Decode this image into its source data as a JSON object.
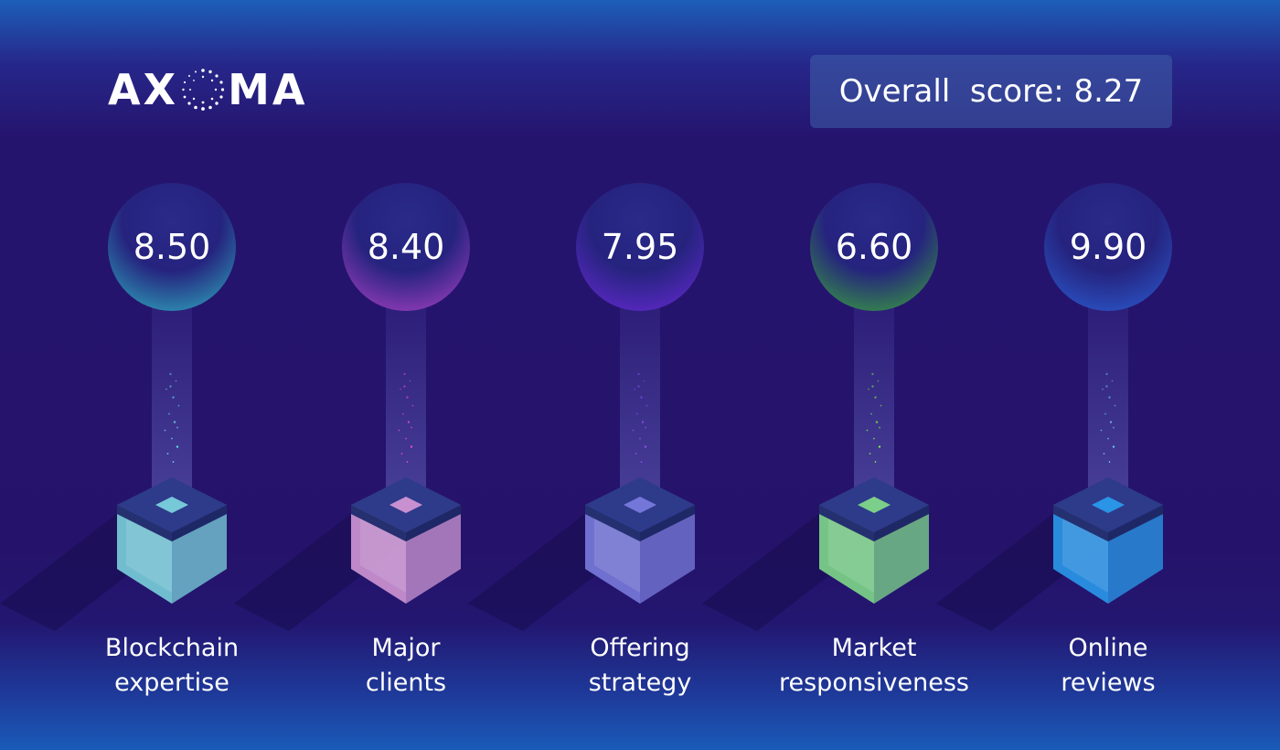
{
  "header": {
    "logo_text_left": "AX",
    "logo_text_right": "MA",
    "overall_score_label": "Overall  score: 8.27"
  },
  "colors": {
    "background": "#25136b",
    "blockchain": "#2fb3c2",
    "clients": "#b042c8",
    "offering": "#6a2ad8",
    "market": "#3aa83a",
    "reviews": "#2b5fd6"
  },
  "pillars": [
    {
      "id": "blockchain-expertise",
      "score": "8.50",
      "line1": "Blockchain",
      "line2": "expertise",
      "color": "#2fb3c2",
      "cube": "#7fd8e0",
      "dots": "#6fe8f0"
    },
    {
      "id": "major-clients",
      "score": "8.40",
      "line1": "Major",
      "line2": "clients",
      "color": "#b042c8",
      "cube": "#d99ad8",
      "dots": "#ff4ad8"
    },
    {
      "id": "offering-strategy",
      "score": "7.95",
      "line1": "Offering",
      "line2": "strategy",
      "color": "#6a2ad8",
      "cube": "#7d7ee0",
      "dots": "#a050ff"
    },
    {
      "id": "market-responsiveness",
      "score": "6.60",
      "line1": "Market",
      "line2": "responsiveness",
      "color": "#3aa83a",
      "cube": "#84e08a",
      "dots": "#7dff3a"
    },
    {
      "id": "online-reviews",
      "score": "9.90",
      "line1": "Online",
      "line2": "reviews",
      "color": "#2b5fd6",
      "cube": "#2a9ef0",
      "dots": "#6fd0ff"
    }
  ]
}
